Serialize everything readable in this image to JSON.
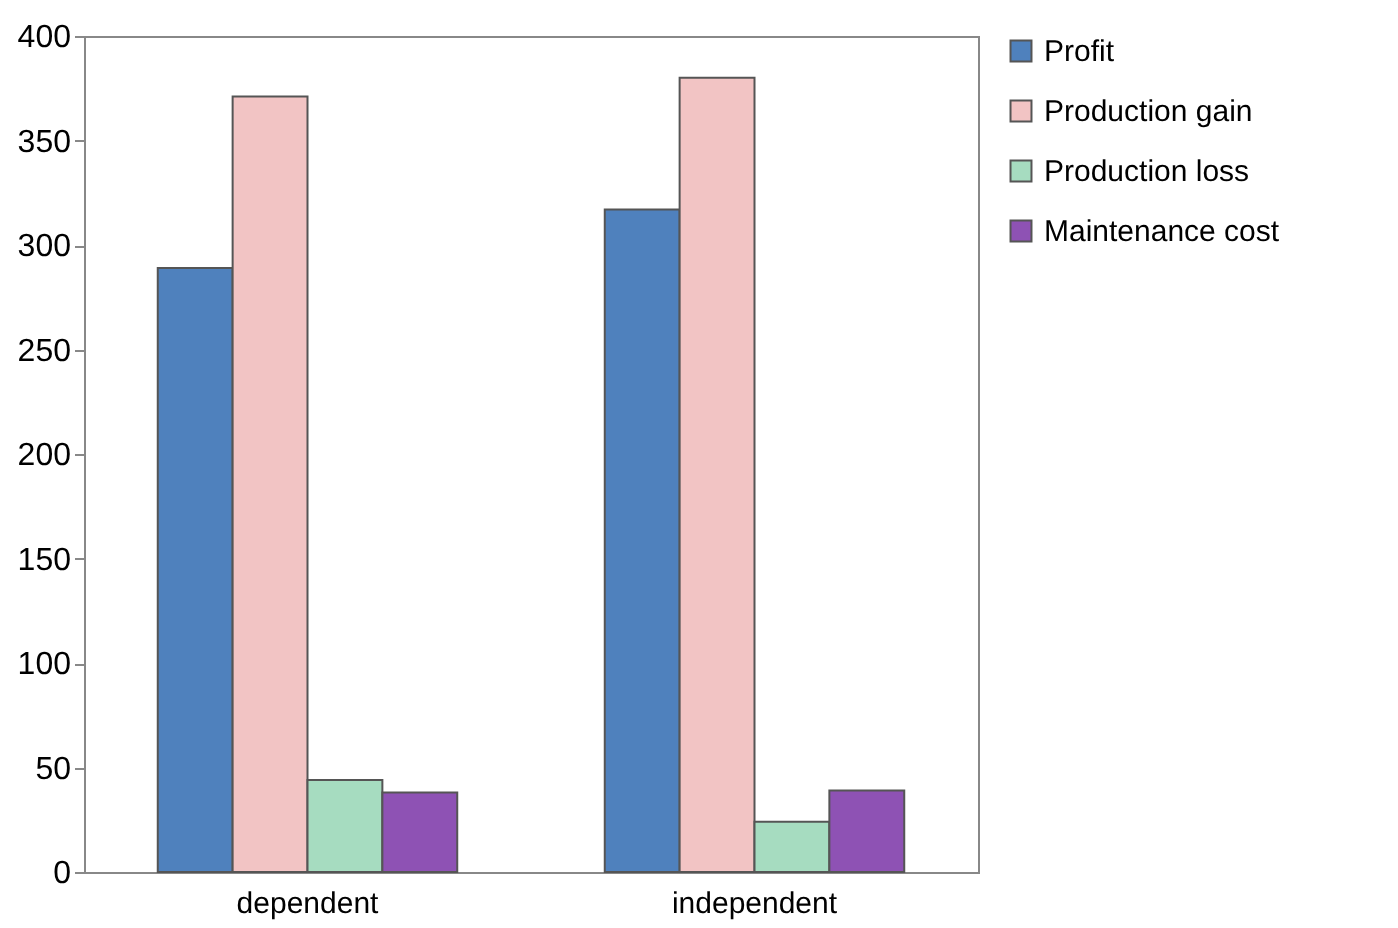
{
  "chart_data": {
    "type": "bar",
    "categories": [
      "dependent",
      "independent"
    ],
    "series": [
      {
        "name": "Profit",
        "color": "#4f81bd",
        "values": [
          289,
          317
        ]
      },
      {
        "name": "Production gain",
        "color": "#f2c4c4",
        "values": [
          371,
          380
        ]
      },
      {
        "name": "Production loss",
        "color": "#a6dcc0",
        "values": [
          44,
          24
        ]
      },
      {
        "name": "Maintenance cost",
        "color": "#8e52b4",
        "values": [
          38,
          39
        ]
      }
    ],
    "ylim": [
      0,
      400
    ],
    "yticks": [
      0,
      50,
      100,
      150,
      200,
      250,
      300,
      350,
      400
    ],
    "grid": false,
    "legend": "right"
  }
}
